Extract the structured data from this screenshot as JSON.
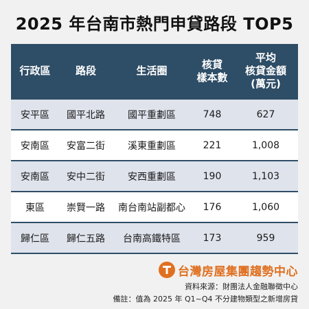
{
  "title": "2025 年台南市熱門申貸路段 TOP5",
  "chart_data": {
    "type": "table",
    "columns": [
      {
        "lines": [
          "行政區"
        ]
      },
      {
        "lines": [
          "路段"
        ]
      },
      {
        "lines": [
          "生活圈"
        ]
      },
      {
        "lines": [
          "核貸",
          "樣本數"
        ]
      },
      {
        "lines": [
          "平均",
          "核貸金額",
          "(萬元)"
        ]
      }
    ],
    "rows": [
      [
        "安平區",
        "國平北路",
        "國平重劃區",
        "748",
        "627"
      ],
      [
        "安南區",
        "安富二街",
        "溪東重劃區",
        "221",
        "1,008"
      ],
      [
        "安南區",
        "安中二街",
        "安西重劃區",
        "190",
        "1,103"
      ],
      [
        "東區",
        "崇賢一路",
        "南台南站副都心",
        "176",
        "1,060"
      ],
      [
        "歸仁區",
        "歸仁五路",
        "台南高鐵特區",
        "173",
        "959"
      ]
    ]
  },
  "logo": {
    "text": "台灣房屋集團趨勢中心",
    "icon": "taiwan-realty-logo-icon",
    "color": "#e07020"
  },
  "source": "資料來源：財團法人金融聯徵中心",
  "note": "備註：值為 2025 年 Q1~Q4 不分建物類型之新增房貸",
  "colors": {
    "header": "#2e4d66",
    "row_alt": "#dfe3ec",
    "background": "#f1f1f1"
  }
}
